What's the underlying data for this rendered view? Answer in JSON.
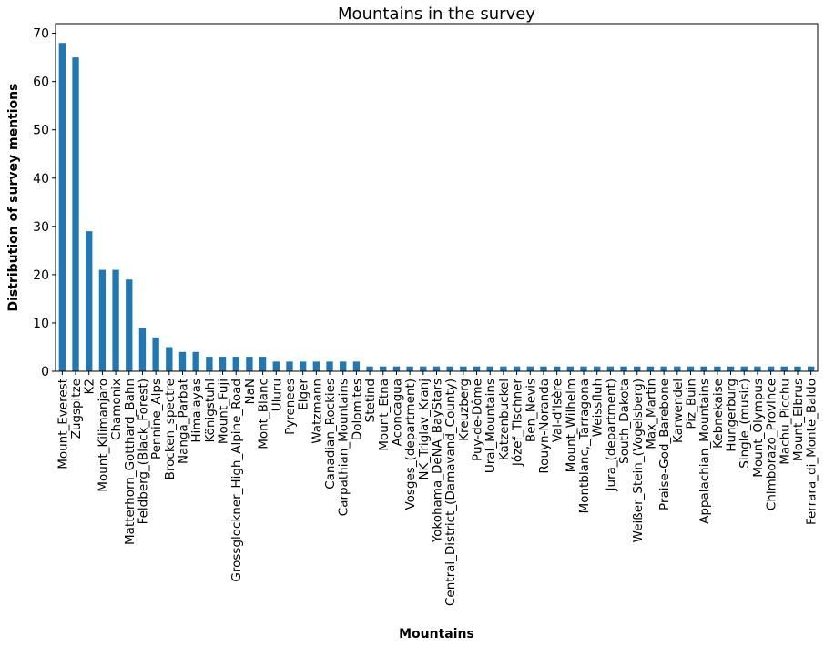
{
  "chart_data": {
    "type": "bar",
    "title": "Mountains in the survey",
    "xlabel": "Mountains",
    "ylabel": "Distribution of survey mentions",
    "ylim": [
      0,
      72
    ],
    "yticks": [
      0,
      10,
      20,
      30,
      40,
      50,
      60,
      70
    ],
    "grid": false,
    "bar_color": "#1f77b4",
    "categories": [
      "Mount_Everest",
      "Zugspitze",
      "K2",
      "Mount_Kilimanjaro",
      "Chamonix",
      "Matterhorn_Gotthard_Bahn",
      "Feldberg_(Black_Forest)",
      "Pennine_Alps",
      "Brocken_spectre",
      "Nanga_Parbat",
      "Himalayas",
      "Königstuhl",
      "Mount_Fuji",
      "Grossglockner_High_Alpine_Road",
      "NaN",
      "Mont_Blanc",
      "Uluru",
      "Pyrenees",
      "Eiger",
      "Watzmann",
      "Canadian_Rockies",
      "Carpathian_Mountains",
      "Dolomites",
      "Stetind",
      "Mount_Etna",
      "Aconcagua",
      "Vosges_(department)",
      "NK_Triglav_Kranj",
      "Yokohama_DeNA_BayStars",
      "Central_District_(Damavand_County)",
      "Kreuzberg",
      "Puy-de-Dôme",
      "Ural_Mountains",
      "Katzenbuckel",
      "Józef_Tischner",
      "Ben_Nevis",
      "Rouyn-Noranda",
      "Val-d'Isère",
      "Mount_Wilhelm",
      "Montblanc,_Tarragona",
      "Weissfluh",
      "Jura_(department)",
      "South_Dakota",
      "Weißer_Stein_(Vogelsberg)",
      "Max_Martin",
      "Praise-God_Barebone",
      "Karwendel",
      "Piz_Buin",
      "Appalachian_Mountains",
      "Kebnekaise",
      "Hungerburg",
      "Single_(music)",
      "Mount_Olympus",
      "Chimborazo_Province",
      "Machu_Picchu",
      "Mount_Elbrus",
      "Ferrara_di_Monte_Baldo"
    ],
    "values": [
      68,
      65,
      29,
      21,
      21,
      19,
      9,
      7,
      5,
      4,
      4,
      3,
      3,
      3,
      3,
      3,
      2,
      2,
      2,
      2,
      2,
      2,
      2,
      1,
      1,
      1,
      1,
      1,
      1,
      1,
      1,
      1,
      1,
      1,
      1,
      1,
      1,
      1,
      1,
      1,
      1,
      1,
      1,
      1,
      1,
      1,
      1,
      1,
      1,
      1,
      1,
      1,
      1,
      1,
      1,
      1,
      1
    ]
  }
}
